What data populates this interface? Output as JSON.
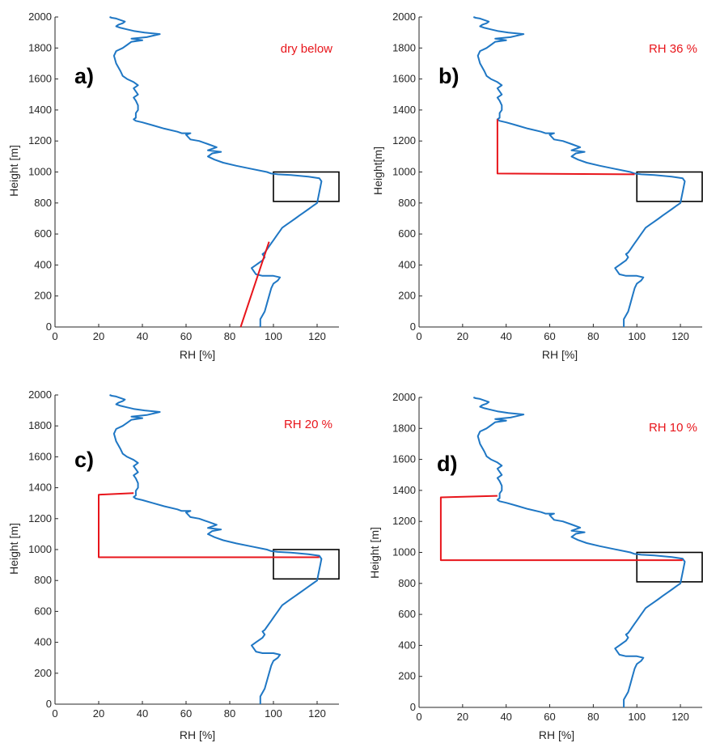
{
  "colors": {
    "profile": "#1f77c4",
    "modification": "#e8151b",
    "box": "#000000",
    "axis": "#262626"
  },
  "chart_data": [
    {
      "type": "line",
      "panel_label": "a)",
      "annotation": "dry below",
      "xlabel": "RH [%]",
      "ylabel": "Height [m]",
      "xlim": [
        0,
        130
      ],
      "ylim": [
        0,
        2000
      ],
      "xticks": [
        0,
        20,
        40,
        60,
        80,
        100,
        120
      ],
      "yticks": [
        0,
        200,
        400,
        600,
        800,
        1000,
        1200,
        1400,
        1600,
        1800,
        2000
      ],
      "grid": false,
      "box": {
        "x": [
          100,
          130
        ],
        "y": [
          810,
          1000
        ]
      },
      "series": [
        {
          "role": "profile",
          "x": [
            94,
            94,
            96,
            97,
            98,
            99,
            100,
            102,
            103,
            100,
            95,
            92,
            91,
            90,
            92,
            93,
            94,
            95,
            96,
            95,
            96,
            97,
            98,
            99,
            100,
            101,
            102,
            103,
            104,
            106,
            108,
            110,
            112,
            114,
            116,
            118,
            120,
            122,
            121,
            116,
            108,
            102,
            99,
            97,
            90,
            83,
            77,
            73,
            70,
            72,
            76,
            70,
            74,
            70,
            66,
            62,
            60,
            62,
            58,
            56,
            50,
            45,
            40,
            37,
            36,
            37,
            37,
            38,
            38,
            37,
            36,
            38,
            37,
            36,
            38,
            36,
            33,
            31,
            30,
            28,
            27,
            28,
            31,
            33,
            35,
            40,
            35,
            42,
            48,
            41,
            36,
            33,
            30,
            28,
            29,
            31,
            32,
            30,
            28,
            26,
            25
          ],
          "y": [
            0,
            50,
            100,
            150,
            200,
            250,
            280,
            300,
            320,
            330,
            330,
            340,
            360,
            380,
            400,
            410,
            420,
            430,
            450,
            470,
            480,
            500,
            520,
            540,
            560,
            580,
            600,
            620,
            640,
            660,
            680,
            700,
            720,
            740,
            760,
            780,
            800,
            940,
            960,
            970,
            980,
            985,
            990,
            1000,
            1020,
            1040,
            1060,
            1080,
            1100,
            1120,
            1130,
            1140,
            1160,
            1180,
            1200,
            1210,
            1240,
            1250,
            1250,
            1260,
            1280,
            1300,
            1320,
            1330,
            1340,
            1350,
            1380,
            1400,
            1430,
            1460,
            1480,
            1500,
            1520,
            1540,
            1560,
            1580,
            1600,
            1620,
            1650,
            1700,
            1750,
            1780,
            1800,
            1820,
            1840,
            1850,
            1860,
            1870,
            1890,
            1900,
            1910,
            1920,
            1930,
            1940,
            1950,
            1960,
            1970,
            1980,
            1990,
            1995,
            2000
          ]
        },
        {
          "role": "modification",
          "x": [
            85,
            98
          ],
          "y": [
            0,
            550
          ]
        }
      ]
    },
    {
      "type": "line",
      "panel_label": "b)",
      "annotation": "RH 36 %",
      "xlabel": "RH [%]",
      "ylabel": "Height[m]",
      "xlim": [
        0,
        130
      ],
      "ylim": [
        0,
        2000
      ],
      "xticks": [
        0,
        20,
        40,
        60,
        80,
        100,
        120
      ],
      "yticks": [
        0,
        200,
        400,
        600,
        800,
        1000,
        1200,
        1400,
        1600,
        1800,
        2000
      ],
      "grid": false,
      "box": {
        "x": [
          100,
          130
        ],
        "y": [
          810,
          1000
        ]
      },
      "series": [
        {
          "role": "profile",
          "x": [
            94,
            94,
            96,
            97,
            98,
            99,
            100,
            102,
            103,
            100,
            95,
            92,
            91,
            90,
            92,
            93,
            94,
            95,
            96,
            95,
            96,
            97,
            98,
            99,
            100,
            101,
            102,
            103,
            104,
            106,
            108,
            110,
            112,
            114,
            116,
            118,
            120,
            122,
            121,
            116,
            108,
            102,
            99,
            97,
            90,
            83,
            77,
            73,
            70,
            72,
            76,
            70,
            74,
            70,
            66,
            62,
            60,
            62,
            58,
            56,
            50,
            45,
            40,
            37,
            36,
            37,
            37,
            38,
            38,
            37,
            36,
            38,
            37,
            36,
            38,
            36,
            33,
            31,
            30,
            28,
            27,
            28,
            31,
            33,
            35,
            40,
            35,
            42,
            48,
            41,
            36,
            33,
            30,
            28,
            29,
            31,
            32,
            30,
            28,
            26,
            25
          ],
          "y": [
            0,
            50,
            100,
            150,
            200,
            250,
            280,
            300,
            320,
            330,
            330,
            340,
            360,
            380,
            400,
            410,
            420,
            430,
            450,
            470,
            480,
            500,
            520,
            540,
            560,
            580,
            600,
            620,
            640,
            660,
            680,
            700,
            720,
            740,
            760,
            780,
            800,
            940,
            960,
            970,
            980,
            985,
            990,
            1000,
            1020,
            1040,
            1060,
            1080,
            1100,
            1120,
            1130,
            1140,
            1160,
            1180,
            1200,
            1210,
            1240,
            1250,
            1250,
            1260,
            1280,
            1300,
            1320,
            1330,
            1340,
            1350,
            1380,
            1400,
            1430,
            1460,
            1480,
            1500,
            1520,
            1540,
            1560,
            1580,
            1600,
            1620,
            1650,
            1700,
            1750,
            1780,
            1800,
            1820,
            1840,
            1850,
            1860,
            1870,
            1890,
            1900,
            1910,
            1920,
            1930,
            1940,
            1950,
            1960,
            1970,
            1980,
            1990,
            1995,
            2000
          ]
        },
        {
          "role": "modification",
          "x": [
            36,
            36,
            99
          ],
          "y": [
            1340,
            990,
            985
          ]
        }
      ]
    },
    {
      "type": "line",
      "panel_label": "c)",
      "annotation": "RH 20 %",
      "xlabel": "RH [%]",
      "ylabel": "Height [m]",
      "xlim": [
        0,
        130
      ],
      "ylim": [
        0,
        2000
      ],
      "xticks": [
        0,
        20,
        40,
        60,
        80,
        100,
        120
      ],
      "yticks": [
        0,
        200,
        400,
        600,
        800,
        1000,
        1200,
        1400,
        1600,
        1800,
        2000
      ],
      "grid": false,
      "box": {
        "x": [
          100,
          130
        ],
        "y": [
          810,
          1000
        ]
      },
      "series": [
        {
          "role": "profile",
          "x": [
            94,
            94,
            96,
            97,
            98,
            99,
            100,
            102,
            103,
            100,
            95,
            92,
            91,
            90,
            92,
            93,
            94,
            95,
            96,
            95,
            96,
            97,
            98,
            99,
            100,
            101,
            102,
            103,
            104,
            106,
            108,
            110,
            112,
            114,
            116,
            118,
            120,
            122,
            121,
            116,
            108,
            102,
            99,
            97,
            90,
            83,
            77,
            73,
            70,
            72,
            76,
            70,
            74,
            70,
            66,
            62,
            60,
            62,
            58,
            56,
            50,
            45,
            40,
            37,
            36,
            37,
            37,
            38,
            38,
            37,
            36,
            38,
            37,
            36,
            38,
            36,
            33,
            31,
            30,
            28,
            27,
            28,
            31,
            33,
            35,
            40,
            35,
            42,
            48,
            41,
            36,
            33,
            30,
            28,
            29,
            31,
            32,
            30,
            28,
            26,
            25
          ],
          "y": [
            0,
            50,
            100,
            150,
            200,
            250,
            280,
            300,
            320,
            330,
            330,
            340,
            360,
            380,
            400,
            410,
            420,
            430,
            450,
            470,
            480,
            500,
            520,
            540,
            560,
            580,
            600,
            620,
            640,
            660,
            680,
            700,
            720,
            740,
            760,
            780,
            800,
            940,
            960,
            970,
            980,
            985,
            990,
            1000,
            1020,
            1040,
            1060,
            1080,
            1100,
            1120,
            1130,
            1140,
            1160,
            1180,
            1200,
            1210,
            1240,
            1250,
            1250,
            1260,
            1280,
            1300,
            1320,
            1330,
            1340,
            1350,
            1380,
            1400,
            1430,
            1460,
            1480,
            1500,
            1520,
            1540,
            1560,
            1580,
            1600,
            1620,
            1650,
            1700,
            1750,
            1780,
            1800,
            1820,
            1840,
            1850,
            1860,
            1870,
            1890,
            1900,
            1910,
            1920,
            1930,
            1940,
            1950,
            1960,
            1970,
            1980,
            1990,
            1995,
            2000
          ]
        },
        {
          "role": "modification",
          "x": [
            36,
            20,
            20,
            121
          ],
          "y": [
            1365,
            1355,
            950,
            950
          ]
        }
      ]
    },
    {
      "type": "line",
      "panel_label": "d)",
      "annotation": "RH 10 %",
      "xlabel": "RH [%]",
      "ylabel": "Height [m]",
      "xlim": [
        0,
        130
      ],
      "ylim": [
        0,
        2000
      ],
      "xticks": [
        0,
        20,
        40,
        60,
        80,
        100,
        120
      ],
      "yticks": [
        0,
        200,
        400,
        600,
        800,
        1000,
        1200,
        1400,
        1600,
        1800,
        2000
      ],
      "grid": false,
      "box": {
        "x": [
          100,
          130
        ],
        "y": [
          810,
          1000
        ]
      },
      "series": [
        {
          "role": "profile",
          "x": [
            94,
            94,
            96,
            97,
            98,
            99,
            100,
            102,
            103,
            100,
            95,
            92,
            91,
            90,
            92,
            93,
            94,
            95,
            96,
            95,
            96,
            97,
            98,
            99,
            100,
            101,
            102,
            103,
            104,
            106,
            108,
            110,
            112,
            114,
            116,
            118,
            120,
            122,
            121,
            116,
            108,
            102,
            99,
            97,
            90,
            83,
            77,
            73,
            70,
            72,
            76,
            70,
            74,
            70,
            66,
            62,
            60,
            62,
            58,
            56,
            50,
            45,
            40,
            37,
            36,
            37,
            37,
            38,
            38,
            37,
            36,
            38,
            37,
            36,
            38,
            36,
            33,
            31,
            30,
            28,
            27,
            28,
            31,
            33,
            35,
            40,
            35,
            42,
            48,
            41,
            36,
            33,
            30,
            28,
            29,
            31,
            32,
            30,
            28,
            26,
            25
          ],
          "y": [
            0,
            50,
            100,
            150,
            200,
            250,
            280,
            300,
            320,
            330,
            330,
            340,
            360,
            380,
            400,
            410,
            420,
            430,
            450,
            470,
            480,
            500,
            520,
            540,
            560,
            580,
            600,
            620,
            640,
            660,
            680,
            700,
            720,
            740,
            760,
            780,
            800,
            940,
            960,
            970,
            980,
            985,
            990,
            1000,
            1020,
            1040,
            1060,
            1080,
            1100,
            1120,
            1130,
            1140,
            1160,
            1180,
            1200,
            1210,
            1240,
            1250,
            1250,
            1260,
            1280,
            1300,
            1320,
            1330,
            1340,
            1350,
            1380,
            1400,
            1430,
            1460,
            1480,
            1500,
            1520,
            1540,
            1560,
            1580,
            1600,
            1620,
            1650,
            1700,
            1750,
            1780,
            1800,
            1820,
            1840,
            1850,
            1860,
            1870,
            1890,
            1900,
            1910,
            1920,
            1930,
            1940,
            1950,
            1960,
            1970,
            1980,
            1990,
            1995,
            2000
          ]
        },
        {
          "role": "modification",
          "x": [
            36,
            10,
            10,
            121
          ],
          "y": [
            1365,
            1355,
            950,
            950
          ]
        }
      ]
    }
  ]
}
